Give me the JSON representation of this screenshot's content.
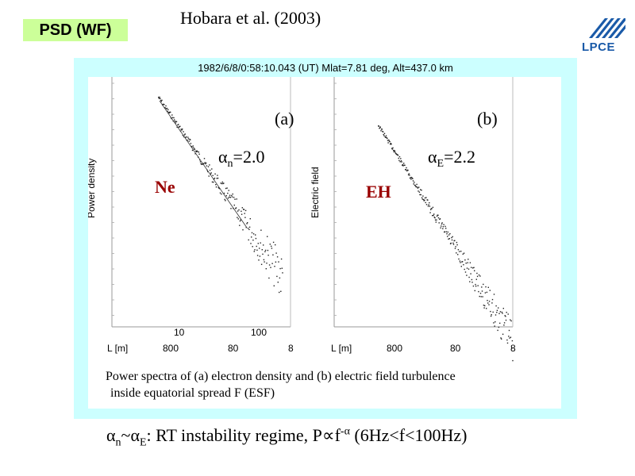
{
  "badge": "PSD (WF)",
  "citation": "Hobara et al. (2003)",
  "logo": {
    "text": "LPCE",
    "color": "#1a5aa8"
  },
  "header": "1982/6/8/0:58:10.043 (UT)   Mlat=7.81 deg, Alt=437.0 km",
  "panel_a": {
    "label": "(a)",
    "alpha_text": "αn=2.0",
    "alpha_symbol": "α",
    "alpha_sub": "n",
    "alpha_value": "=2.0",
    "species": "Ne",
    "x_ticks": [
      "10",
      "100"
    ],
    "L_label": "L [m]",
    "L_ticks": [
      "800",
      "80",
      "8"
    ]
  },
  "panel_b": {
    "label": "(b)",
    "alpha_text": "αE=2.2",
    "alpha_symbol": "α",
    "alpha_sub": "E",
    "alpha_value": "=2.2",
    "species": "EH",
    "L_label": "L [m]",
    "L_ticks": [
      "800",
      "80",
      "8"
    ]
  },
  "caption": {
    "line1": "Power spectra of (a) electron density and (b) electric field turbulence",
    "line2": "inside equatorial spread F (ESF)"
  },
  "bottom": {
    "a1": "α",
    "s1": "n",
    "tilde": "~",
    "a2": "α",
    "s2": "E",
    "rest": ": RT instability regime, P",
    "prop": "∝",
    "f": "f",
    "exp": "-α",
    "range": " (6Hz<f<100Hz)"
  },
  "colors": {
    "badge_bg": "#ccff99",
    "panel_bg": "#ccffff",
    "species_red": "#990000"
  }
}
